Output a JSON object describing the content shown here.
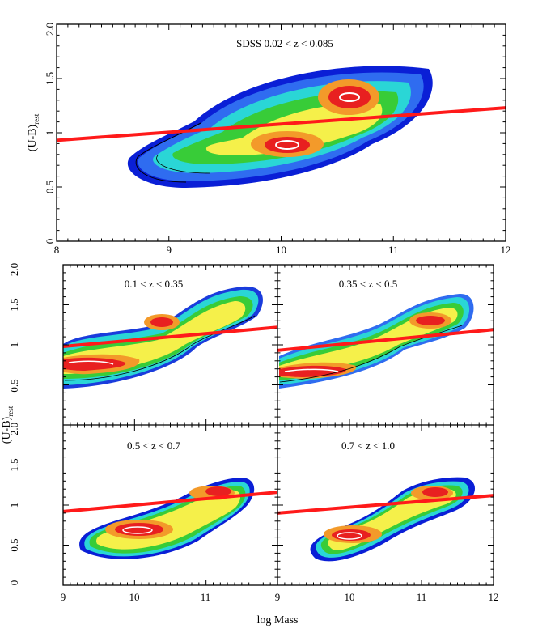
{
  "chart_data": [
    {
      "type": "contour",
      "title": "SDSS 0.02 < z < 0.085",
      "xlabel": "",
      "ylabel": "(U-B)",
      "ylabel_sub": "rest",
      "xlim": [
        8,
        12
      ],
      "ylim": [
        0,
        2
      ],
      "x_ticks": [
        "8",
        "9",
        "10",
        "11",
        "12"
      ],
      "y_ticks": [
        "0",
        "0.5",
        "1",
        "1.5",
        "2.0"
      ],
      "divider_line": {
        "x": [
          8,
          12
        ],
        "y": [
          0.93,
          1.23
        ]
      },
      "density_peaks": [
        {
          "x": 10.05,
          "y": 0.88
        },
        {
          "x": 10.45,
          "y": 1.31
        }
      ]
    },
    {
      "type": "contour",
      "title": "0.1 < z < 0.35",
      "xlim": [
        9,
        12
      ],
      "ylim": [
        0,
        2
      ],
      "y_ticks": [
        "0",
        "0.5",
        "1",
        "1.5",
        "2.0"
      ],
      "divider_line": {
        "x": [
          9,
          12
        ],
        "y": [
          0.98,
          1.22
        ]
      },
      "density_peaks": [
        {
          "x": 9.5,
          "y": 0.75
        },
        {
          "x": 10.55,
          "y": 1.3
        }
      ]
    },
    {
      "type": "contour",
      "title": "0.35 < z < 0.5",
      "xlim": [
        9,
        12
      ],
      "ylim": [
        0,
        2
      ],
      "divider_line": {
        "x": [
          9,
          12
        ],
        "y": [
          0.93,
          1.19
        ]
      },
      "density_peaks": [
        {
          "x": 9.6,
          "y": 0.68
        },
        {
          "x": 10.8,
          "y": 1.32
        }
      ]
    },
    {
      "type": "contour",
      "title": "0.5 < z < 0.7",
      "xlabel": "log Mass",
      "ylabel": "(U-B)",
      "ylabel_sub": "rest",
      "xlim": [
        9,
        12
      ],
      "ylim": [
        0,
        2
      ],
      "x_ticks": [
        "9",
        "10",
        "11"
      ],
      "y_ticks": [
        "0",
        "0.5",
        "1",
        "1.5",
        "2.0"
      ],
      "divider_line": {
        "x": [
          9,
          12
        ],
        "y": [
          0.92,
          1.16
        ]
      },
      "density_peaks": [
        {
          "x": 10.0,
          "y": 0.76
        },
        {
          "x": 10.85,
          "y": 1.25
        }
      ]
    },
    {
      "type": "contour",
      "title": "0.7 < z < 1.0",
      "xlabel": "log Mass",
      "xlim": [
        9,
        12
      ],
      "ylim": [
        0,
        2
      ],
      "x_ticks": [
        "9",
        "10",
        "11",
        "12"
      ],
      "divider_line": {
        "x": [
          9,
          12
        ],
        "y": [
          0.9,
          1.12
        ]
      },
      "density_peaks": [
        {
          "x": 10.0,
          "y": 0.63
        },
        {
          "x": 10.9,
          "y": 1.22
        }
      ]
    }
  ],
  "colors": {
    "divider_line": "#ff1a1a",
    "level_outer": "#0a1fd6",
    "level_blue": "#2f6cf0",
    "level_cyan": "#2ad6d6",
    "level_green": "#38cc38",
    "level_yellow": "#f5f04a",
    "level_orange": "#f39a2a",
    "level_red": "#e82020",
    "level_white": "#ffffff"
  }
}
